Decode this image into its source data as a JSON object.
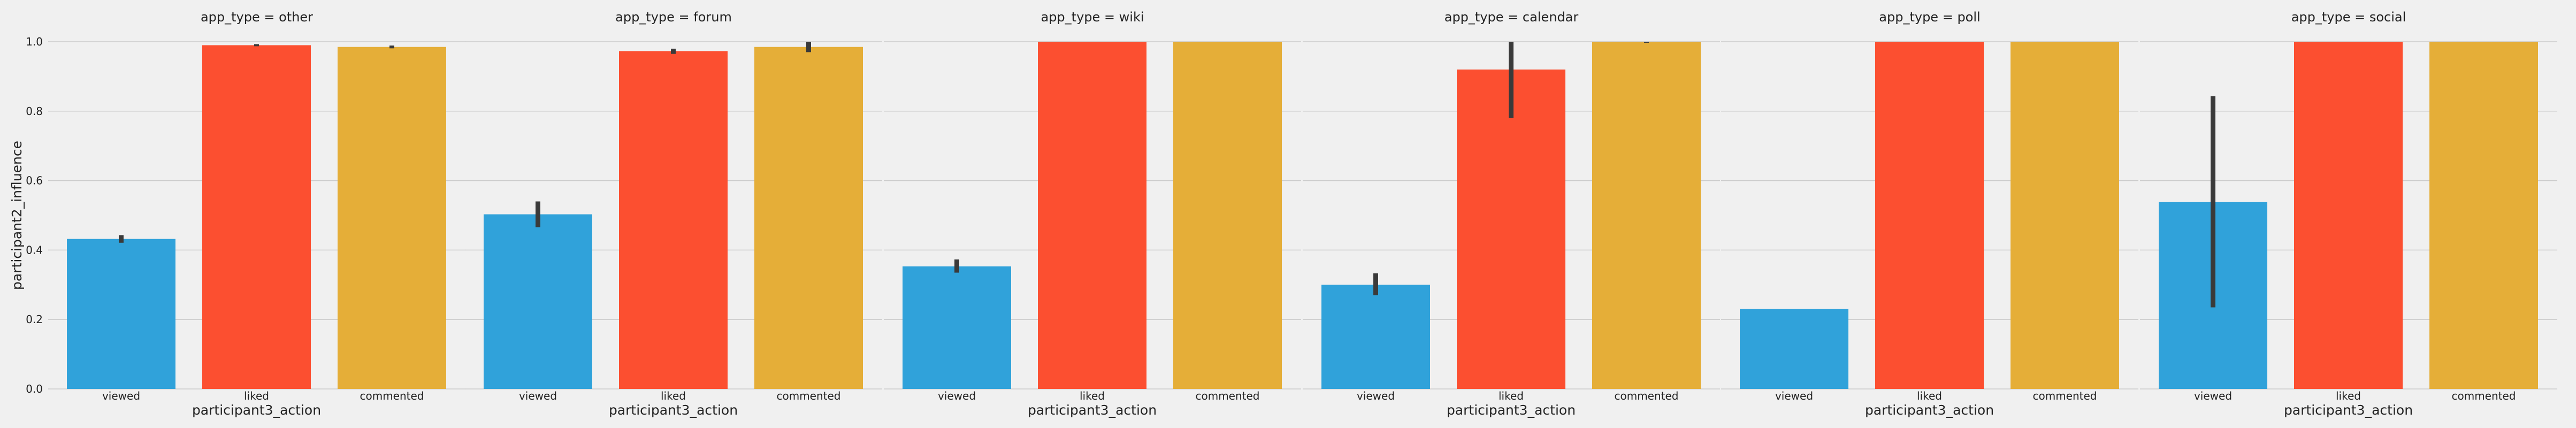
{
  "chart_data": {
    "type": "bar",
    "layout": "faceted",
    "facet_variable": "app_type",
    "facet_title_template": "app_type = {facet}",
    "categories": [
      "viewed",
      "liked",
      "commented"
    ],
    "xlabel": "participant3_action",
    "ylabel": "participant2_influence",
    "ylim": [
      0,
      1.0
    ],
    "yticks": [
      "0.0",
      "0.2",
      "0.4",
      "0.6",
      "0.8",
      "1.0"
    ],
    "grid": true,
    "colors": [
      "#30a2da",
      "#fc4f30",
      "#e5ae38"
    ],
    "error_bar_color": "#3a3a3a",
    "facets": [
      {
        "facet": "other",
        "title": "app_type = other",
        "values": [
          0.432,
          0.99,
          0.985
        ],
        "ci": [
          [
            0.421,
            0.443
          ],
          [
            0.987,
            0.993
          ],
          [
            0.981,
            0.989
          ]
        ]
      },
      {
        "facet": "forum",
        "title": "app_type = forum",
        "values": [
          0.503,
          0.973,
          0.985
        ],
        "ci": [
          [
            0.466,
            0.54
          ],
          [
            0.965,
            0.98
          ],
          [
            0.97,
            1.0
          ]
        ]
      },
      {
        "facet": "wiki",
        "title": "app_type = wiki",
        "values": [
          0.353,
          1.0,
          1.0
        ],
        "ci": [
          [
            0.335,
            0.373
          ],
          [
            1.0,
            1.0
          ],
          [
            1.0,
            1.0
          ]
        ]
      },
      {
        "facet": "calendar",
        "title": "app_type = calendar",
        "values": [
          0.3,
          0.92,
          1.0
        ],
        "ci": [
          [
            0.27,
            0.333
          ],
          [
            0.78,
            1.0
          ],
          [
            0.997,
            1.0
          ]
        ]
      },
      {
        "facet": "poll",
        "title": "app_type = poll",
        "values": [
          0.23,
          1.0,
          1.0
        ],
        "ci": [
          [
            0.23,
            0.23
          ],
          [
            1.0,
            1.0
          ],
          [
            1.0,
            1.0
          ]
        ]
      },
      {
        "facet": "social",
        "title": "app_type = social",
        "values": [
          0.538,
          1.0,
          1.0
        ],
        "ci": [
          [
            0.235,
            0.843
          ],
          [
            1.0,
            1.0
          ],
          [
            1.0,
            1.0
          ]
        ]
      }
    ]
  }
}
